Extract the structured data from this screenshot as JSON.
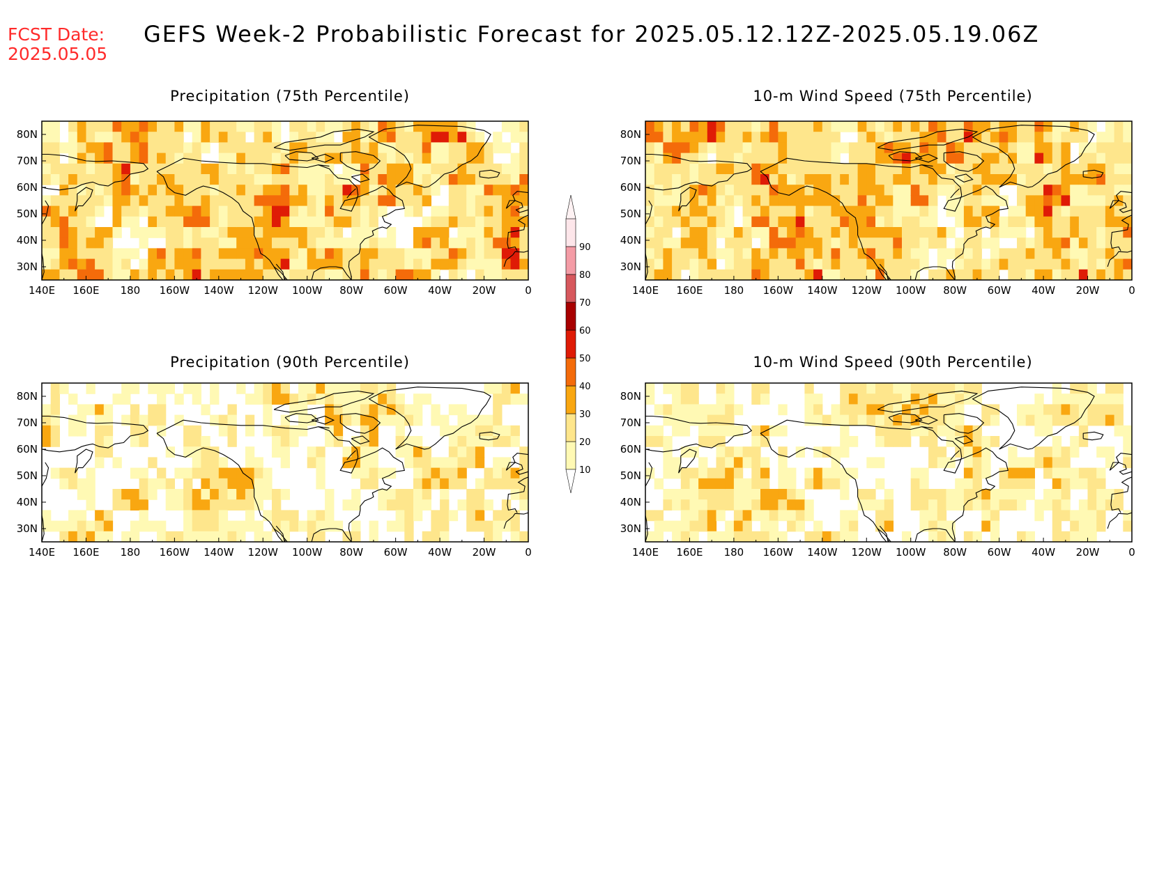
{
  "header": {
    "fcst_label": "FCST Date:",
    "fcst_date": "2025.05.05",
    "title": "GEFS Week-2 Probabilistic Forecast for 2025.05.12.12Z-2025.05.19.06Z"
  },
  "panels": [
    {
      "id": "precip-75",
      "title": "Precipitation (75th Percentile)",
      "level": "high"
    },
    {
      "id": "wind-75",
      "title": "10-m Wind Speed (75th Percentile)",
      "level": "high"
    },
    {
      "id": "precip-90",
      "title": "Precipitation (90th Percentile)",
      "level": "low"
    },
    {
      "id": "wind-90",
      "title": "10-m Wind Speed (90th Percentile)",
      "level": "low"
    }
  ],
  "axes": {
    "lon_labels": [
      "140E",
      "160E",
      "180",
      "160W",
      "140W",
      "120W",
      "100W",
      "80W",
      "60W",
      "40W",
      "20W",
      "0"
    ],
    "lat_labels": [
      "80N",
      "70N",
      "60N",
      "50N",
      "40N",
      "30N"
    ],
    "lon_range": [
      140,
      360
    ],
    "lat_range": [
      25,
      85
    ]
  },
  "colorbar": {
    "ticks": [
      "10",
      "20",
      "30",
      "40",
      "50",
      "60",
      "70",
      "80",
      "90"
    ],
    "colors": [
      "#fff9b4",
      "#fee68c",
      "#f9a711",
      "#f46b0a",
      "#df1b06",
      "#a80000",
      "#d7585d",
      "#f49ca6",
      "#fde6ea"
    ]
  }
}
